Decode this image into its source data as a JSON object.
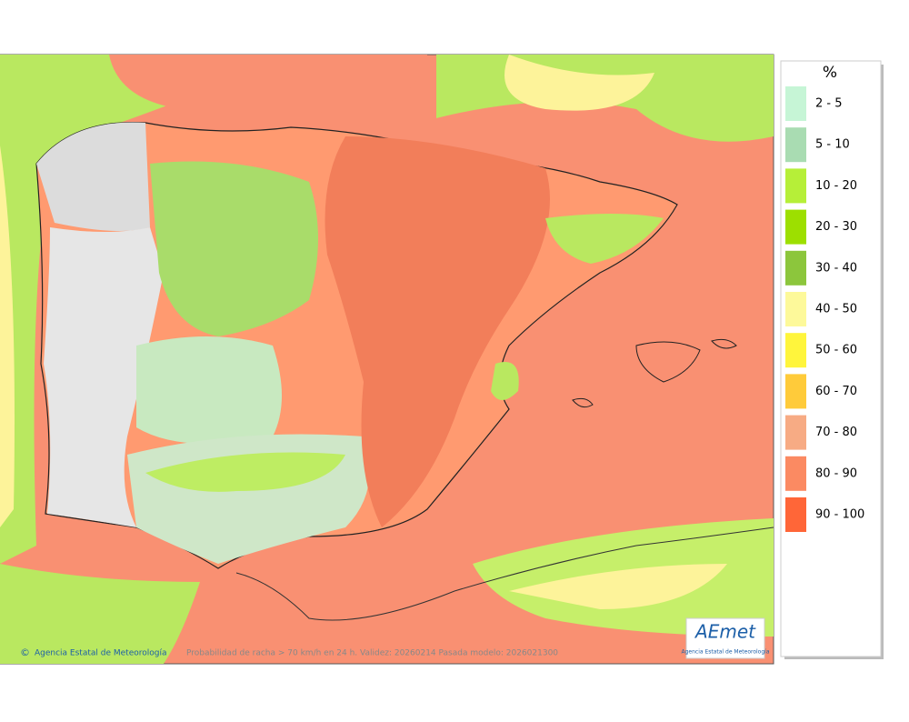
{
  "legend": {
    "title": "%",
    "items": [
      {
        "label": "2 - 5",
        "color": "#c6f5d6"
      },
      {
        "label": "5 - 10",
        "color": "#a9dcb2"
      },
      {
        "label": "10 - 20",
        "color": "#b6ef38"
      },
      {
        "label": "20 - 30",
        "color": "#9ddf00"
      },
      {
        "label": "30 - 40",
        "color": "#8cc63c"
      },
      {
        "label": "40 - 50",
        "color": "#fdf99a"
      },
      {
        "label": "50 - 60",
        "color": "#fff53c"
      },
      {
        "label": "60 - 70",
        "color": "#ffcb3a"
      },
      {
        "label": "70 - 80",
        "color": "#f7ab84"
      },
      {
        "label": "80 - 90",
        "color": "#fb8a62"
      },
      {
        "label": "90 - 100",
        "color": "#ff6638"
      }
    ]
  },
  "footer": {
    "credit": "Agencia Estatal de Meteorología",
    "caption": "Probabilidad de racha > 70 km/h en 24 h. Validez: 20260214 Pasada modelo: 2026021300"
  },
  "logo": {
    "name": "AEmet",
    "subtitle": "Agencia Estatal de Meteorología"
  }
}
